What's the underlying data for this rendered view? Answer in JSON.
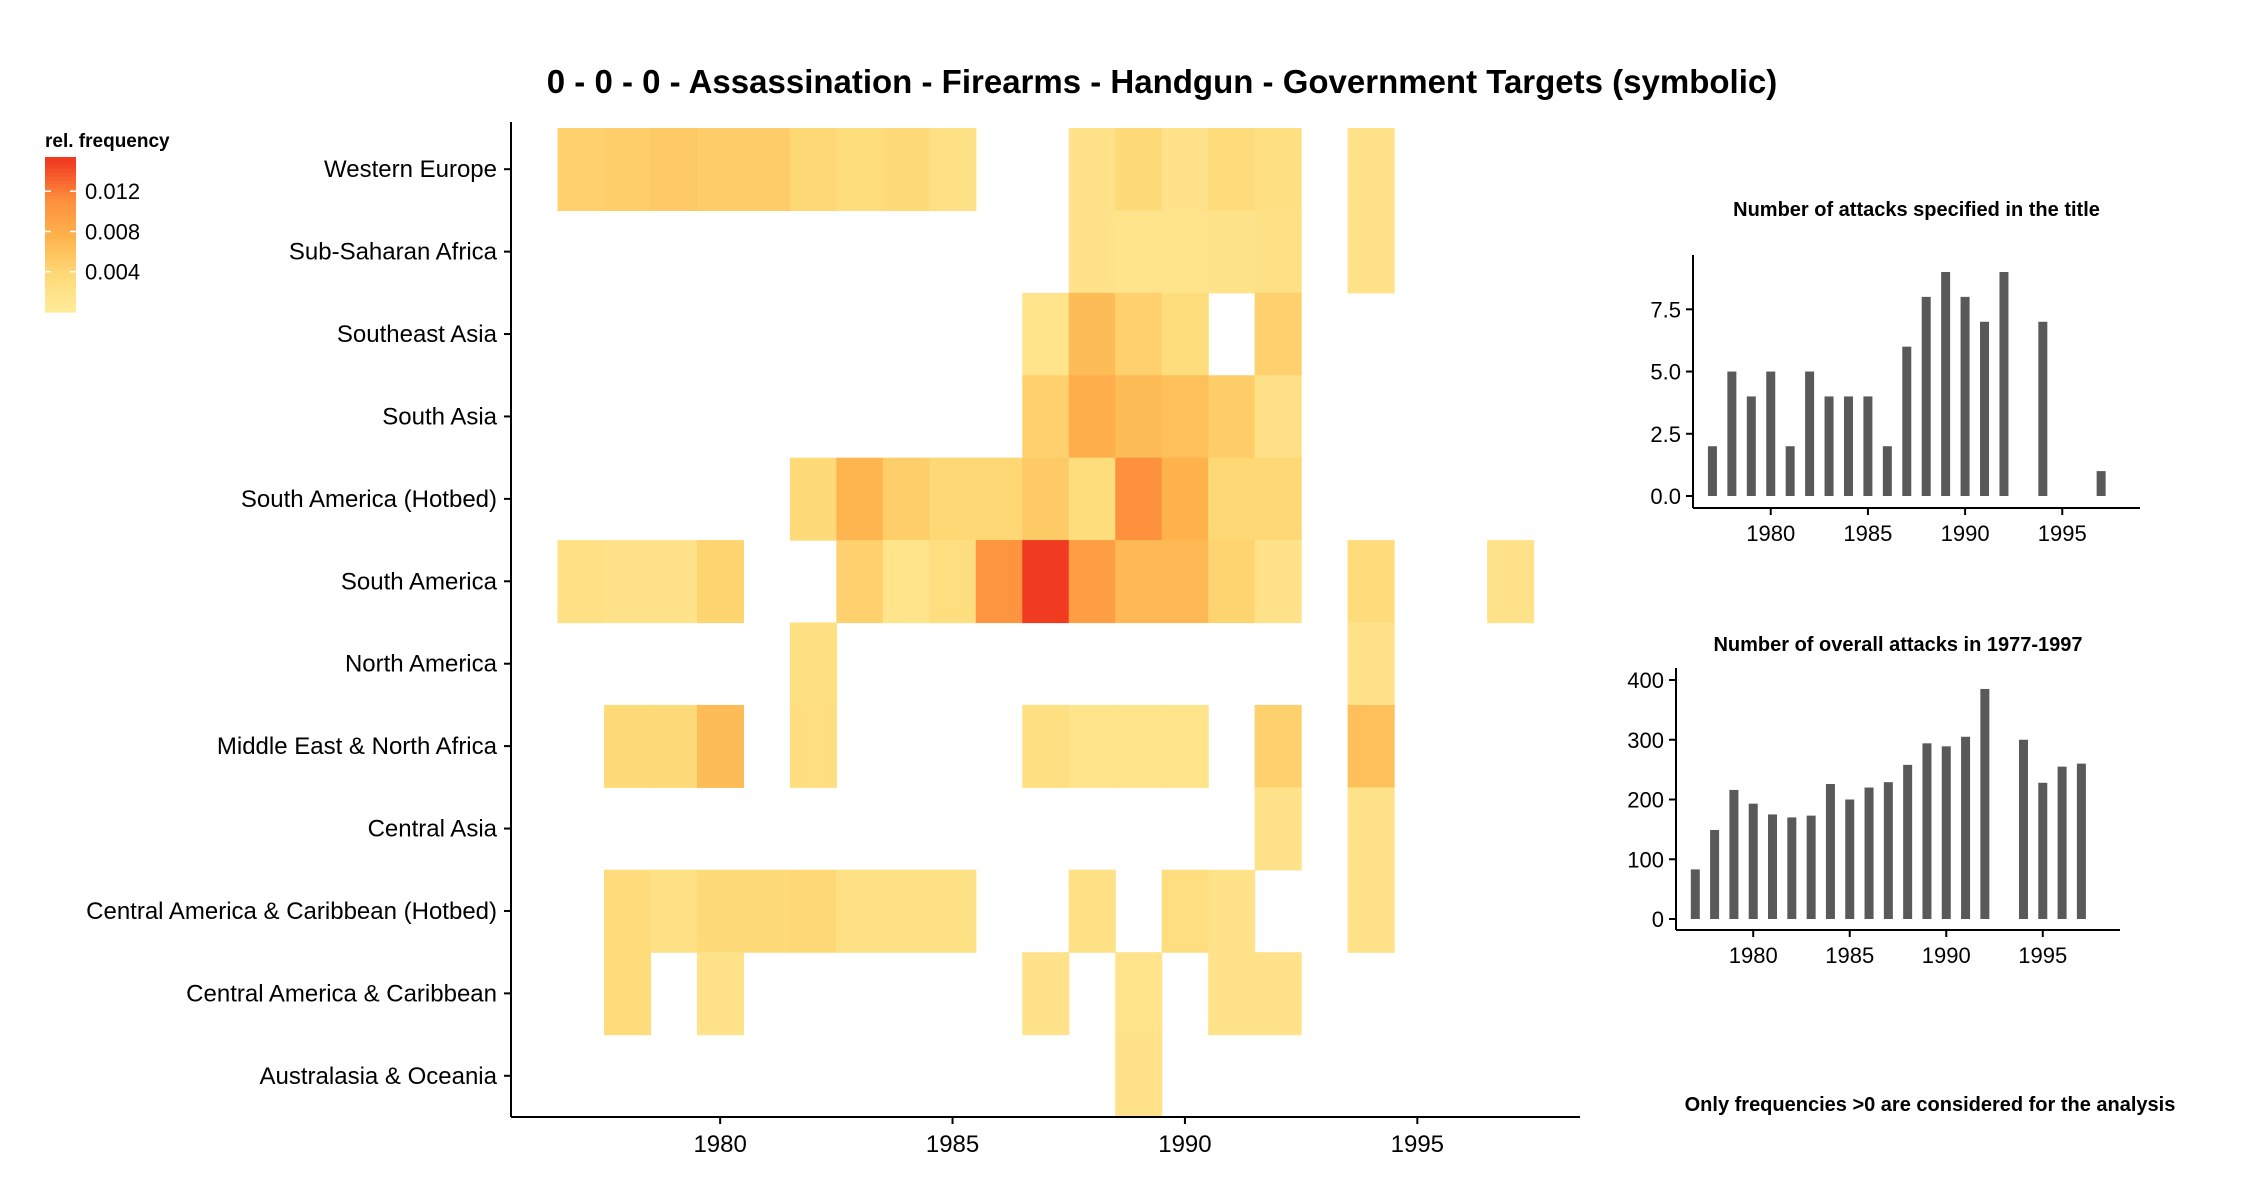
{
  "main": {
    "title": "0 - 0 - 0 - Assassination - Firearms - Handgun - Government Targets (symbolic)"
  },
  "legend": {
    "title": "rel. frequency",
    "ticks": [
      {
        "value": 0.012,
        "label": "0.012"
      },
      {
        "value": 0.008,
        "label": "0.008"
      },
      {
        "value": 0.004,
        "label": "0.004"
      }
    ],
    "colors": [
      "#ffeb9a",
      "#fed976",
      "#feb24c",
      "#fd8d3c",
      "#f03b20"
    ]
  },
  "note": "Only frequencies >0 are considered for the analysis",
  "chart_data": [
    {
      "type": "heatmap",
      "title": "0 - 0 - 0 - Assassination - Firearms - Handgun - Government Targets (symbolic)",
      "xlabel": "",
      "ylabel": "",
      "x_ticks": [
        1980,
        1985,
        1990,
        1995
      ],
      "xlim": [
        1975.5,
        1998.5
      ],
      "color_range": [
        0,
        0.015
      ],
      "regions": [
        "Western Europe",
        "Sub-Saharan Africa",
        "Southeast Asia",
        "South Asia",
        "South America (Hotbed)",
        "South America",
        "North America",
        "Middle East & North Africa",
        "Central Asia",
        "Central America & Caribbean (Hotbed)",
        "Central America & Caribbean",
        "Australasia & Oceania"
      ],
      "cells": [
        [
          "Western Europe",
          1977,
          0.0045
        ],
        [
          "Western Europe",
          1978,
          0.0048
        ],
        [
          "Western Europe",
          1979,
          0.0052
        ],
        [
          "Western Europe",
          1980,
          0.005
        ],
        [
          "Western Europe",
          1981,
          0.005
        ],
        [
          "Western Europe",
          1982,
          0.0038
        ],
        [
          "Western Europe",
          1983,
          0.003
        ],
        [
          "Western Europe",
          1984,
          0.0035
        ],
        [
          "Western Europe",
          1985,
          0.0022
        ],
        [
          "Western Europe",
          1988,
          0.0018
        ],
        [
          "Western Europe",
          1989,
          0.0035
        ],
        [
          "Western Europe",
          1990,
          0.0018
        ],
        [
          "Western Europe",
          1991,
          0.0032
        ],
        [
          "Western Europe",
          1992,
          0.0025
        ],
        [
          "Western Europe",
          1994,
          0.0018
        ],
        [
          "Sub-Saharan Africa",
          1988,
          0.0018
        ],
        [
          "Sub-Saharan Africa",
          1989,
          0.0015
        ],
        [
          "Sub-Saharan Africa",
          1990,
          0.0015
        ],
        [
          "Sub-Saharan Africa",
          1991,
          0.0016
        ],
        [
          "Sub-Saharan Africa",
          1992,
          0.0022
        ],
        [
          "Sub-Saharan Africa",
          1994,
          0.0018
        ],
        [
          "Southeast Asia",
          1987,
          0.0015
        ],
        [
          "Southeast Asia",
          1988,
          0.0065
        ],
        [
          "Southeast Asia",
          1989,
          0.0045
        ],
        [
          "Southeast Asia",
          1990,
          0.003
        ],
        [
          "Southeast Asia",
          1992,
          0.0045
        ],
        [
          "South Asia",
          1987,
          0.0045
        ],
        [
          "South Asia",
          1988,
          0.0078
        ],
        [
          "South Asia",
          1989,
          0.0065
        ],
        [
          "South Asia",
          1990,
          0.0062
        ],
        [
          "South Asia",
          1991,
          0.005
        ],
        [
          "South Asia",
          1992,
          0.002
        ],
        [
          "South America (Hotbed)",
          1982,
          0.0035
        ],
        [
          "South America (Hotbed)",
          1983,
          0.0072
        ],
        [
          "South America (Hotbed)",
          1984,
          0.0048
        ],
        [
          "South America (Hotbed)",
          1985,
          0.0038
        ],
        [
          "South America (Hotbed)",
          1986,
          0.0038
        ],
        [
          "South America (Hotbed)",
          1987,
          0.0052
        ],
        [
          "South America (Hotbed)",
          1988,
          0.003
        ],
        [
          "South America (Hotbed)",
          1989,
          0.0108
        ],
        [
          "South America (Hotbed)",
          1990,
          0.0075
        ],
        [
          "South America (Hotbed)",
          1991,
          0.0038
        ],
        [
          "South America (Hotbed)",
          1992,
          0.0038
        ],
        [
          "South America",
          1977,
          0.0022
        ],
        [
          "South America",
          1978,
          0.0018
        ],
        [
          "South America",
          1979,
          0.0018
        ],
        [
          "South America",
          1980,
          0.0042
        ],
        [
          "South America",
          1983,
          0.0045
        ],
        [
          "South America",
          1984,
          0.0015
        ],
        [
          "South America",
          1985,
          0.0028
        ],
        [
          "South America",
          1986,
          0.0105
        ],
        [
          "South America",
          1987,
          0.0152
        ],
        [
          "South America",
          1988,
          0.0095
        ],
        [
          "South America",
          1989,
          0.0068
        ],
        [
          "South America",
          1990,
          0.0068
        ],
        [
          "South America",
          1991,
          0.0042
        ],
        [
          "South America",
          1992,
          0.0018
        ],
        [
          "South America",
          1994,
          0.0032
        ],
        [
          "South America",
          1997,
          0.0018
        ],
        [
          "North America",
          1982,
          0.0025
        ],
        [
          "North America",
          1994,
          0.0018
        ],
        [
          "Middle East & North Africa",
          1978,
          0.0035
        ],
        [
          "Middle East & North Africa",
          1979,
          0.0035
        ],
        [
          "Middle East & North Africa",
          1980,
          0.0065
        ],
        [
          "Middle East & North Africa",
          1982,
          0.0028
        ],
        [
          "Middle East & North Africa",
          1987,
          0.0025
        ],
        [
          "Middle East & North Africa",
          1988,
          0.0015
        ],
        [
          "Middle East & North Africa",
          1989,
          0.0015
        ],
        [
          "Middle East & North Africa",
          1990,
          0.0015
        ],
        [
          "Middle East & North Africa",
          1992,
          0.0045
        ],
        [
          "Middle East & North Africa",
          1994,
          0.0062
        ],
        [
          "Central Asia",
          1992,
          0.0018
        ],
        [
          "Central Asia",
          1994,
          0.0018
        ],
        [
          "Central America & Caribbean (Hotbed)",
          1978,
          0.0032
        ],
        [
          "Central America & Caribbean (Hotbed)",
          1979,
          0.0022
        ],
        [
          "Central America & Caribbean (Hotbed)",
          1980,
          0.0035
        ],
        [
          "Central America & Caribbean (Hotbed)",
          1981,
          0.0035
        ],
        [
          "Central America & Caribbean (Hotbed)",
          1982,
          0.0038
        ],
        [
          "Central America & Caribbean (Hotbed)",
          1983,
          0.0022
        ],
        [
          "Central America & Caribbean (Hotbed)",
          1984,
          0.0022
        ],
        [
          "Central America & Caribbean (Hotbed)",
          1985,
          0.0022
        ],
        [
          "Central America & Caribbean (Hotbed)",
          1988,
          0.0022
        ],
        [
          "Central America & Caribbean (Hotbed)",
          1990,
          0.0028
        ],
        [
          "Central America & Caribbean (Hotbed)",
          1991,
          0.0018
        ],
        [
          "Central America & Caribbean (Hotbed)",
          1994,
          0.0018
        ],
        [
          "Central America & Caribbean",
          1978,
          0.0032
        ],
        [
          "Central America & Caribbean",
          1980,
          0.0018
        ],
        [
          "Central America & Caribbean",
          1987,
          0.0018
        ],
        [
          "Central America & Caribbean",
          1989,
          0.0015
        ],
        [
          "Central America & Caribbean",
          1991,
          0.0018
        ],
        [
          "Central America & Caribbean",
          1992,
          0.0018
        ],
        [
          "Australasia & Oceania",
          1989,
          0.0018
        ]
      ]
    },
    {
      "type": "bar",
      "title": "Number of attacks specified in the title",
      "x": [
        1977,
        1978,
        1979,
        1980,
        1981,
        1982,
        1983,
        1984,
        1985,
        1986,
        1987,
        1988,
        1989,
        1990,
        1991,
        1992,
        1994,
        1997
      ],
      "values": [
        2,
        5,
        4,
        5,
        2,
        5,
        4,
        4,
        4,
        2,
        6,
        8,
        9,
        8,
        7,
        9,
        7,
        1
      ],
      "xlim": [
        1976,
        1999
      ],
      "ylim": [
        0,
        9.2
      ],
      "x_ticks": [
        1980,
        1985,
        1990,
        1995
      ],
      "y_ticks": [
        0.0,
        2.5,
        5.0,
        7.5
      ],
      "y_tick_labels": [
        "0.0",
        "2.5",
        "5.0",
        "7.5"
      ],
      "bar_color": "#595959"
    },
    {
      "type": "bar",
      "title": "Number of overall attacks in 1977-1997",
      "x": [
        1977,
        1978,
        1979,
        1980,
        1981,
        1982,
        1983,
        1984,
        1985,
        1986,
        1987,
        1988,
        1989,
        1990,
        1991,
        1992,
        1994,
        1995,
        1996,
        1997
      ],
      "values": [
        83,
        149,
        216,
        193,
        175,
        170,
        173,
        226,
        200,
        220,
        229,
        258,
        294,
        289,
        305,
        385,
        300,
        228,
        255,
        260
      ],
      "xlim": [
        1976,
        1999
      ],
      "ylim": [
        0,
        400
      ],
      "x_ticks": [
        1980,
        1985,
        1990,
        1995
      ],
      "y_ticks": [
        0,
        100,
        200,
        300,
        400
      ],
      "y_tick_labels": [
        "0",
        "100",
        "200",
        "300",
        "400"
      ],
      "bar_color": "#595959"
    }
  ]
}
